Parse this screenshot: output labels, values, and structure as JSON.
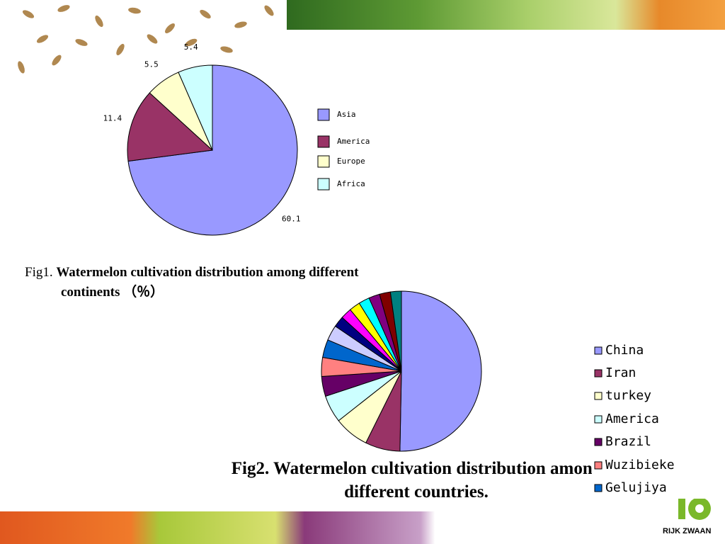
{
  "chart_data": [
    {
      "type": "pie",
      "caption_prefix": "Fig1.",
      "title": "Watermelon  cultivation  distribution among different continents （％）",
      "categories": [
        "Asia",
        "America",
        "Europe",
        "Africa"
      ],
      "values": [
        60.1,
        11.4,
        5.5,
        5.4
      ],
      "colors": [
        "#9999FF",
        "#993366",
        "#FFFFCC",
        "#CCFFFF"
      ],
      "legend": "right"
    },
    {
      "type": "pie",
      "title": "Fig2. Watermelon cultivation distribution among different countries.",
      "categories": [
        "China",
        "Iran",
        "turkey",
        "America",
        "Brazil",
        "Wuzibieke",
        "Gelujiya",
        null,
        null,
        null,
        null,
        null,
        null,
        null,
        null
      ],
      "values": [
        50,
        7,
        7,
        5.5,
        4,
        3.8,
        3.6,
        3.1,
        2.2,
        2.2,
        2.2,
        2.2,
        2.2,
        2.2,
        2.2
      ],
      "colors": [
        "#9999FF",
        "#993366",
        "#FFFFCC",
        "#CCFFFF",
        "#660066",
        "#FF8080",
        "#0066CC",
        "#CCCCFF",
        "#000080",
        "#FF00FF",
        "#FFFF00",
        "#00FFFF",
        "#800080",
        "#800000",
        "#008080"
      ],
      "legend": "right"
    }
  ],
  "logo": "RIJK ZWAAN"
}
